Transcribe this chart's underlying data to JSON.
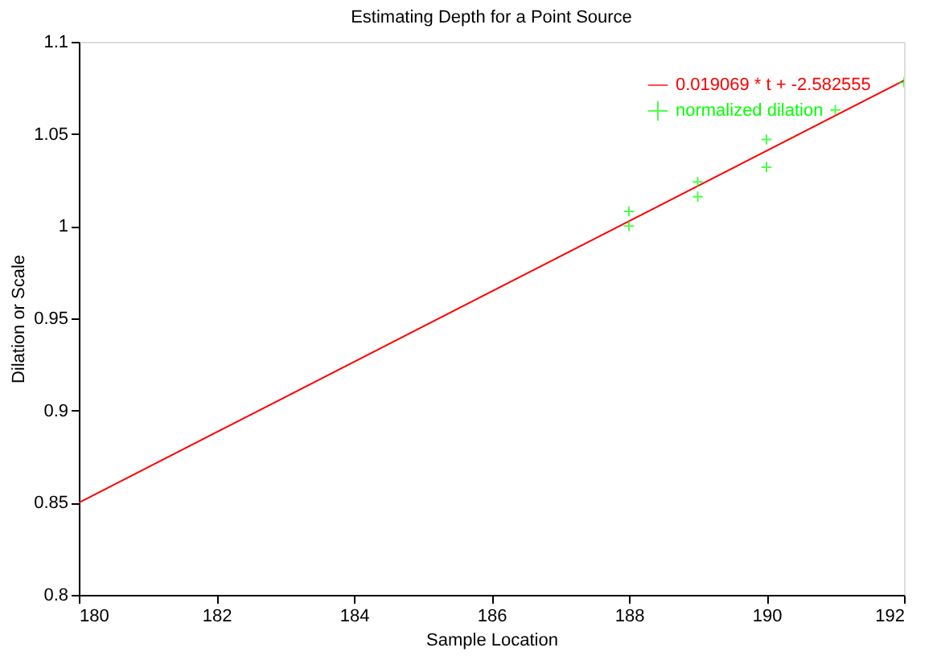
{
  "chart_data": {
    "type": "scatter",
    "title": "Estimating Depth for a Point Source",
    "xlabel": "Sample Location",
    "ylabel": "Dilation or Scale",
    "xlim": [
      180,
      192
    ],
    "xticks": [
      180,
      182,
      184,
      186,
      188,
      190,
      192
    ],
    "ylim": [
      0.8,
      1.1
    ],
    "yticks": [
      0.8,
      0.85,
      0.9,
      0.95,
      1,
      1.05,
      1.1
    ],
    "grid": false,
    "legend": "top right",
    "series": [
      {
        "name": "0.019069 * t + -2.582555",
        "type": "line",
        "marker": "none",
        "color": "#ff0000",
        "x": [
          180,
          192
        ],
        "values": [
          0.85,
          1.079
        ]
      },
      {
        "name": "normalized dilation",
        "type": "scatter",
        "marker": "cross",
        "color": "#00ff00",
        "x": [
          188,
          188,
          189,
          189,
          190,
          190,
          191,
          192
        ],
        "values": [
          1.008,
          1.0,
          1.024,
          1.016,
          1.047,
          1.032,
          1.063,
          1.078
        ]
      }
    ]
  }
}
